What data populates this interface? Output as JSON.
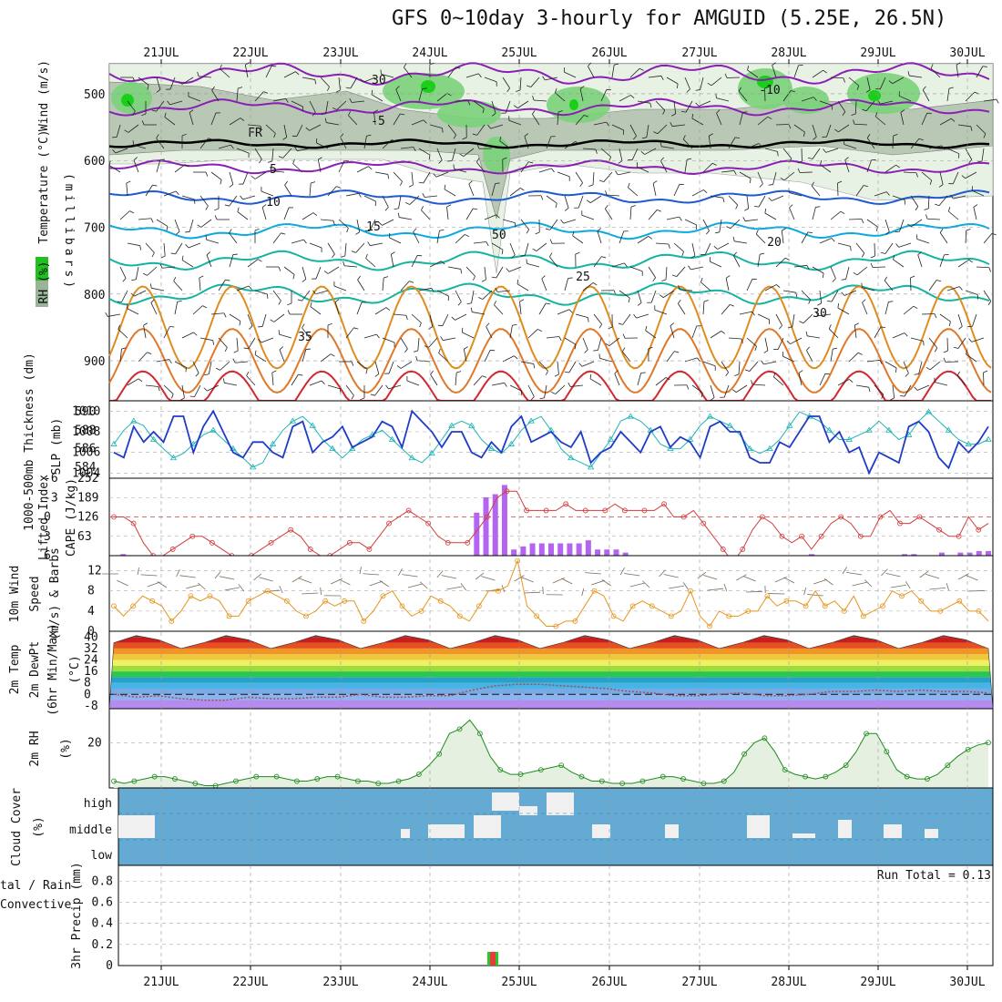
{
  "title": "GFS 0~10day 3-hourly for AMGUID (5.25E, 26.5N)",
  "colors": {
    "rh_green": "#00c800",
    "temp_purple": "#8a1fb5",
    "temp_blue": "#1e5ad2",
    "temp_cyan": "#0aaae0",
    "temp_teal": "#14b4a0",
    "temp_orange": "#e08c1e",
    "temp_red": "#d2282d",
    "slp_line": "#1e3cc8",
    "thickness_line": "#1eb4b4",
    "lifted_index": "#d23c3c",
    "cape_bar": "#b464f0",
    "wind_speed": "#e6961e",
    "rh2m_line": "#1e8c1e",
    "rh2m_fill": "#e6f0e0",
    "cloud_bg": "#64aad2",
    "cloud_block": "#f0f0f0",
    "precip_total": "#28c828",
    "precip_convective": "#e63c3c"
  },
  "chart_data": [
    {
      "id": "upper-air",
      "type": "heatmap",
      "title": "GFS 0~10day 3-hourly for AMGUID (5.25E, 26.5N)",
      "x_dates": [
        "21JUL",
        "22JUL",
        "23JUL",
        "24JUL",
        "25JUL",
        "26JUL",
        "27JUL",
        "28JUL",
        "29JUL",
        "30JUL"
      ],
      "ylabel": "(millibars)",
      "y_ticks": [
        500,
        600,
        700,
        800,
        900
      ],
      "legend_labels": [
        "Wind (m/s)",
        "Temperature (°C)",
        "RH (%)"
      ],
      "isotherm_labels": [
        "-10",
        "-5",
        "FR",
        "5",
        "10",
        "15",
        "20",
        "25",
        "30",
        "35"
      ],
      "rh_labels": [
        "30",
        "50"
      ]
    },
    {
      "id": "slp-thickness",
      "type": "line",
      "ylabel_left": "1000-500mb Thickness (dm)",
      "ylabel_right": "SLP (mb)",
      "left_ticks": [
        "590",
        "588",
        "586",
        "584"
      ],
      "right_ticks": [
        "1010",
        "1008",
        "1006",
        "1004"
      ],
      "series": [
        {
          "name": "SLP (mb)",
          "values": [
            1006,
            1005.5,
            1008.5,
            1007,
            1008,
            1007,
            1009.5,
            1009.5,
            1006,
            1008.5,
            1010,
            1008,
            1006,
            1005.5,
            1007,
            1007,
            1006,
            1005.5,
            1008.5,
            1009,
            1006,
            1007,
            1007.5,
            1008.5,
            1006.5,
            1007,
            1007.5,
            1009,
            1008.5,
            1006.5,
            1010,
            1009,
            1008,
            1006.5,
            1008,
            1008,
            1006,
            1005.5,
            1007,
            1006,
            1008.5,
            1009.5,
            1007,
            1007.5,
            1008,
            1007,
            1006.5,
            1008,
            1005,
            1006,
            1006.5,
            1008,
            1007,
            1006,
            1008,
            1008.5,
            1006.5,
            1007.5,
            1007,
            1005.5,
            1008.5,
            1009,
            1008,
            1008,
            1005.5,
            1005,
            1005,
            1007,
            1006.5,
            1008,
            1009.5,
            1009.5,
            1007,
            1008,
            1006,
            1006.5,
            1004,
            1006,
            1005.5,
            1005,
            1008.5,
            1009,
            1008,
            1005.5,
            1004.5,
            1007,
            1006,
            1007,
            1008.5
          ]
        },
        {
          "name": "Thickness (dm)",
          "values": [
            586.5,
            588,
            589,
            588.5,
            587,
            586,
            585,
            585.5,
            586.5,
            587.5,
            588,
            587,
            586,
            585,
            584,
            584.5,
            586.5,
            588,
            589,
            589.5,
            588.5,
            587,
            586,
            585,
            586,
            587,
            587.5,
            588,
            587,
            586,
            585,
            584.5,
            585.5,
            587,
            588.5,
            589,
            588.5,
            587,
            586,
            585.5,
            586.5,
            588,
            589,
            589.5,
            588,
            586,
            585,
            584.5,
            584,
            585.5,
            587,
            589,
            589.5,
            589,
            588,
            586.5,
            586,
            586,
            587,
            588.5,
            589.5,
            589,
            588.5,
            587.5,
            586,
            585.5,
            586,
            587,
            588.5,
            590,
            589.5,
            589,
            588,
            587,
            587,
            587.5,
            588,
            589,
            588,
            587,
            587.5,
            589,
            590,
            589,
            588,
            587,
            586.5,
            586.5,
            587
          ]
        }
      ]
    },
    {
      "id": "lifted-cape",
      "type": "bar",
      "ylabel_left": "Lifted Index",
      "ylabel_right": "CAPE (J/kg)",
      "left_ticks": [
        "-6",
        "-3",
        "0",
        "3",
        "6"
      ],
      "right_ticks": [
        "252",
        "189",
        "126",
        "63"
      ],
      "series": [
        {
          "name": "Lifted Index",
          "values": [
            0,
            0,
            1,
            4,
            6,
            6,
            5,
            4,
            3,
            3,
            4,
            5,
            6,
            6,
            6,
            5,
            4,
            3,
            2,
            3,
            5,
            6,
            6,
            5,
            4,
            4,
            5,
            3,
            1,
            0,
            -1,
            0,
            1,
            3,
            4,
            4,
            4,
            2,
            0,
            -3,
            -4,
            -4,
            -1,
            -1,
            -1,
            -1,
            -2,
            -1,
            -1,
            -1,
            -1,
            -2,
            -1,
            -1,
            -1,
            -1,
            -2,
            0,
            0,
            -1,
            1,
            3,
            5,
            7,
            5,
            2,
            0,
            1,
            3,
            4,
            3,
            5,
            3,
            1,
            0,
            1,
            3,
            3,
            0,
            -1,
            1,
            1,
            0,
            1,
            2,
            3,
            3,
            0,
            2,
            1
          ]
        },
        {
          "name": "CAPE (J/kg)",
          "values": [
            0,
            5,
            0,
            0,
            0,
            0,
            0,
            0,
            0,
            0,
            0,
            0,
            0,
            0,
            0,
            0,
            0,
            0,
            0,
            0,
            0,
            0,
            0,
            0,
            0,
            0,
            0,
            0,
            0,
            0,
            0,
            0,
            0,
            0,
            0,
            0,
            0,
            0,
            0,
            140,
            190,
            200,
            230,
            20,
            30,
            40,
            40,
            40,
            40,
            40,
            40,
            50,
            20,
            20,
            20,
            10,
            0,
            0,
            0,
            0,
            0,
            0,
            0,
            0,
            0,
            0,
            0,
            0,
            0,
            0,
            0,
            0,
            0,
            0,
            0,
            5,
            0,
            0,
            0,
            0,
            0,
            0,
            0,
            0,
            0,
            5,
            5,
            0,
            0,
            10,
            0,
            10,
            10,
            15,
            15
          ]
        }
      ]
    },
    {
      "id": "wind10m",
      "type": "line",
      "ylabel": "10m Wind Speed (m/s) & Barbs",
      "y_ticks": [
        "12",
        "8",
        "4",
        "0"
      ],
      "ylim": [
        0,
        15
      ],
      "series": [
        {
          "name": "10m Wind Speed",
          "values": [
            5,
            3,
            5,
            7,
            6,
            5,
            2,
            4,
            7,
            6,
            7,
            6,
            3,
            3,
            6,
            7,
            8,
            7,
            6,
            4,
            3,
            4,
            6,
            5,
            6,
            6,
            2,
            4,
            7,
            8,
            5,
            3,
            4,
            7,
            6,
            5,
            3,
            2,
            5,
            8,
            8,
            9,
            14,
            5,
            3,
            1,
            1,
            2,
            2,
            5,
            8,
            7,
            3,
            2,
            5,
            6,
            5,
            4,
            3,
            4,
            8,
            3,
            1,
            4,
            3,
            3,
            4,
            4,
            7,
            5,
            6,
            6,
            5,
            8,
            5,
            6,
            4,
            7,
            3,
            4,
            5,
            8,
            7,
            8,
            6,
            4,
            4,
            5,
            6,
            4,
            4,
            2
          ]
        }
      ]
    },
    {
      "id": "temp2m",
      "type": "area",
      "ylabel": "2m Temp / 2m DewPt (6hr Min/Max) (°C)",
      "y_ticks": [
        "40",
        "32",
        "24",
        "16",
        "8",
        "0",
        "-8"
      ],
      "ylim": [
        -10,
        44
      ],
      "series": [
        {
          "name": "2m Temp",
          "values": [
            36,
            41,
            38,
            32,
            36,
            41,
            38,
            32,
            36,
            41,
            38,
            32,
            36,
            41,
            38,
            32,
            36,
            41,
            38,
            32,
            36,
            41,
            38,
            32,
            36,
            41,
            38,
            32,
            36,
            41,
            38,
            32,
            36,
            41,
            38,
            32,
            36,
            41,
            38,
            32
          ]
        },
        {
          "name": "2m DewPt",
          "values": [
            0,
            -2,
            -1,
            -3,
            -4,
            -4,
            -2,
            -3,
            -3,
            -2,
            -2,
            0,
            -2,
            -2,
            -1,
            -1,
            3,
            6,
            7,
            7,
            6,
            5,
            4,
            2,
            1,
            -1,
            -1,
            0,
            1,
            -1,
            -1,
            0,
            2,
            2,
            3,
            2,
            3,
            2,
            2,
            1
          ]
        }
      ]
    },
    {
      "id": "rh2m",
      "type": "area",
      "ylabel": "2m RH (%)",
      "y_ticks": [
        "20"
      ],
      "ylim": [
        0,
        35
      ],
      "series": [
        {
          "name": "2m RH",
          "values": [
            3,
            2,
            3,
            4,
            5,
            5,
            4,
            3,
            2,
            1,
            1,
            2,
            3,
            4,
            5,
            5,
            5,
            4,
            3,
            3,
            4,
            5,
            5,
            4,
            3,
            3,
            2,
            2,
            3,
            4,
            6,
            10,
            15,
            24,
            26,
            30,
            24,
            14,
            8,
            6,
            6,
            7,
            8,
            9,
            10,
            7,
            5,
            3,
            3,
            2,
            2,
            2,
            3,
            4,
            5,
            5,
            4,
            3,
            2,
            2,
            3,
            7,
            15,
            20,
            22,
            16,
            8,
            6,
            5,
            4,
            5,
            7,
            10,
            16,
            24,
            24,
            16,
            8,
            5,
            4,
            4,
            6,
            10,
            14,
            17,
            19,
            20
          ]
        }
      ]
    },
    {
      "id": "cloud-cover",
      "type": "bar",
      "ylabel": "Cloud Cover (%)",
      "levels": [
        "high",
        "middle",
        "low"
      ]
    },
    {
      "id": "precip",
      "type": "bar",
      "ylabel": "Total / Rain Convective 3hr Precip (mm)",
      "y_ticks": [
        "0.8",
        "0.6",
        "0.4",
        "0.2",
        "0"
      ],
      "ylim": [
        0,
        0.95
      ],
      "annotation": "Run Total = 0.13",
      "x_dates": [
        "21JUL",
        "22JUL",
        "23JUL",
        "24JUL",
        "25JUL",
        "26JUL",
        "27JUL",
        "28JUL",
        "29JUL",
        "30JUL"
      ],
      "series": [
        {
          "name": "Total",
          "values": [
            0.13
          ]
        },
        {
          "name": "Convective",
          "values": [
            0.13
          ]
        }
      ]
    }
  ]
}
